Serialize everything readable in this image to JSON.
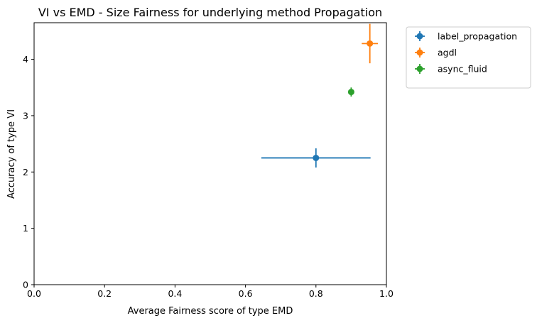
{
  "chart_data": {
    "type": "scatter",
    "title": "VI vs EMD - Size Fairness for underlying method Propagation",
    "xlabel": "Average Fairness score of type EMD",
    "ylabel": "Accuracy of type VI",
    "xlim": [
      0.0,
      1.0
    ],
    "ylim": [
      0,
      4.65
    ],
    "xticks": [
      0.0,
      0.2,
      0.4,
      0.6,
      0.8,
      1.0
    ],
    "xtick_labels": [
      "0.0",
      "0.2",
      "0.4",
      "0.6",
      "0.8",
      "1.0"
    ],
    "yticks": [
      0,
      1,
      2,
      3,
      4
    ],
    "ytick_labels": [
      "0",
      "1",
      "2",
      "3",
      "4"
    ],
    "grid": false,
    "legend_position": "outside upper right",
    "series": [
      {
        "name": "label_propagation",
        "color": "#1f77b4",
        "x": 0.8,
        "y": 2.25,
        "xerr": 0.155,
        "yerr": 0.17
      },
      {
        "name": "agdl",
        "color": "#ff7f0e",
        "x": 0.953,
        "y": 4.28,
        "xerr": 0.023,
        "yerr": 0.35
      },
      {
        "name": "async_fluid",
        "color": "#2ca02c",
        "x": 0.9,
        "y": 3.42,
        "xerr": 0.008,
        "yerr": 0.08
      }
    ]
  }
}
